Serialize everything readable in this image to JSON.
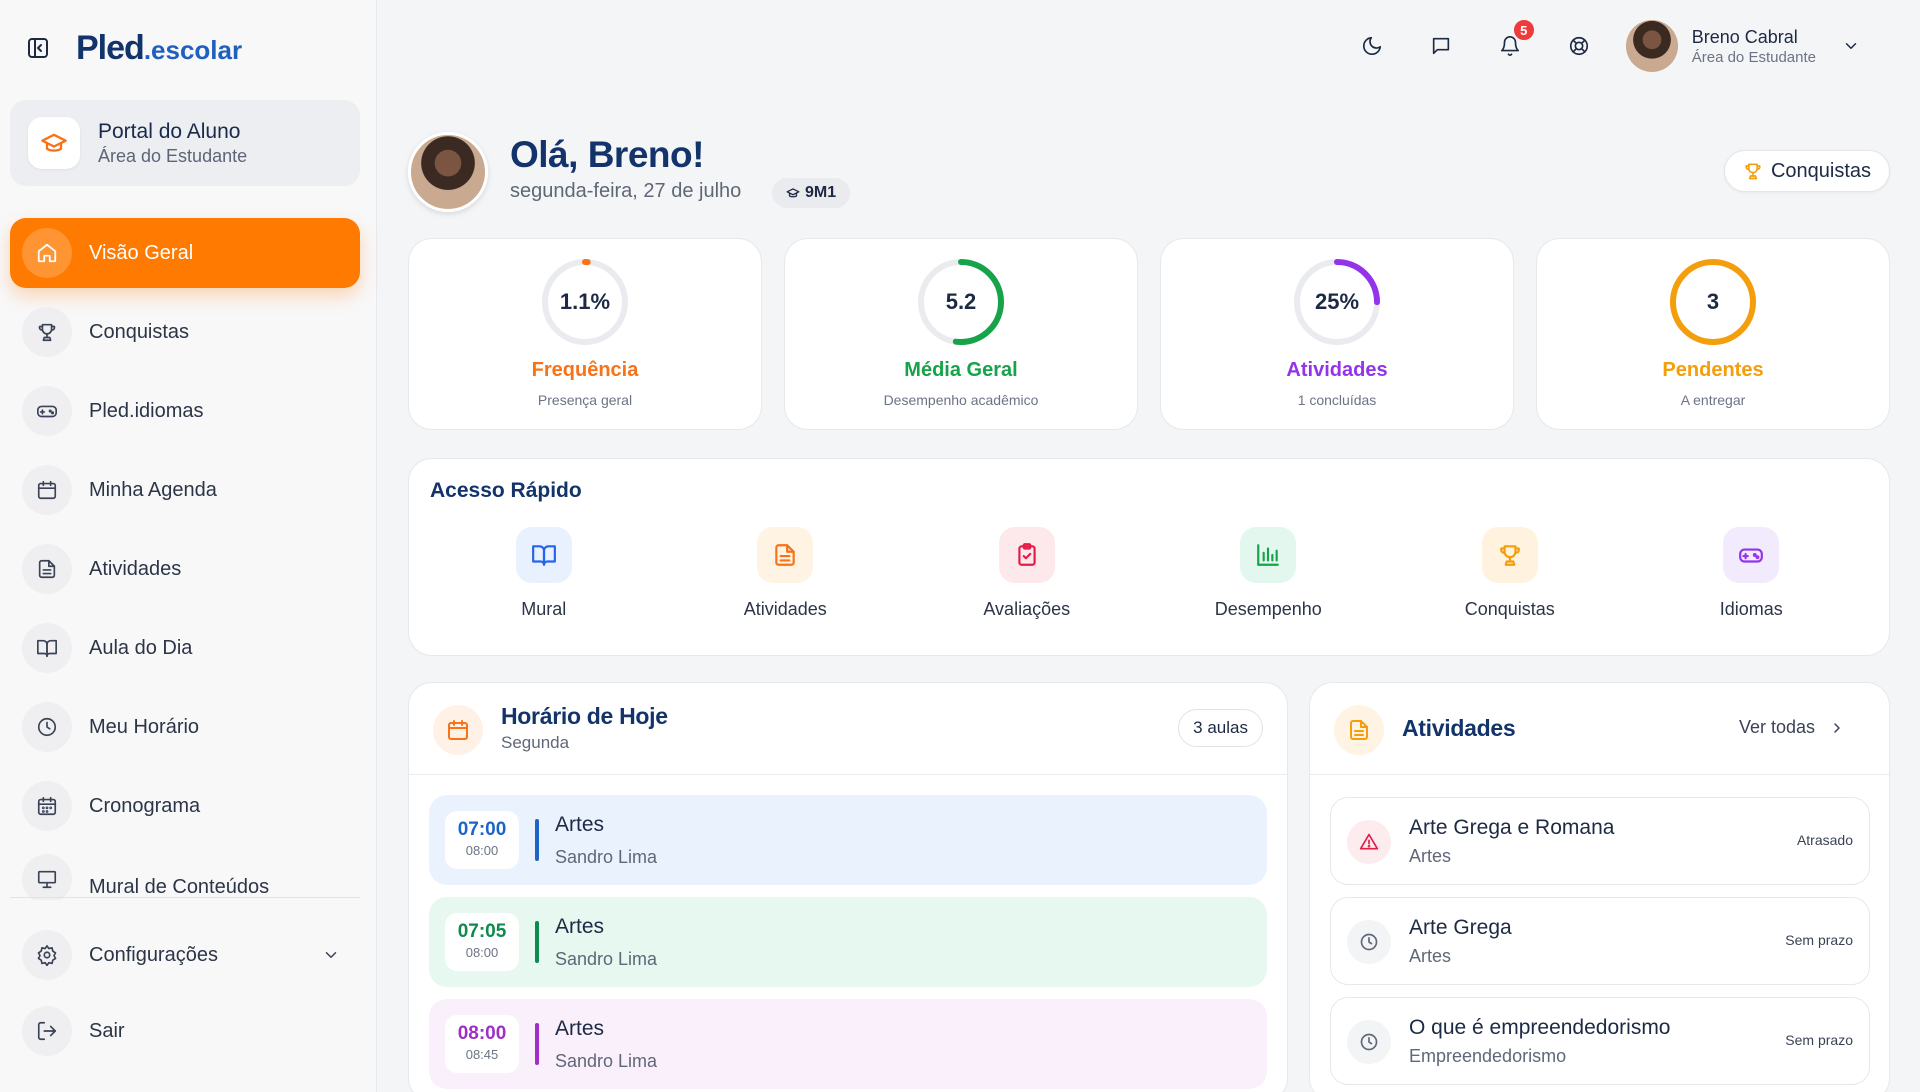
{
  "logo": {
    "main": "Pled",
    "sub": ".escolar"
  },
  "portal": {
    "title": "Portal do Aluno",
    "subtitle": "Área do Estudante"
  },
  "sidebar": {
    "items": [
      {
        "label": "Visão Geral",
        "icon": "home-icon",
        "active": true
      },
      {
        "label": "Conquistas",
        "icon": "trophy-icon"
      },
      {
        "label": "Pled.idiomas",
        "icon": "gamepad-icon"
      },
      {
        "label": "Minha Agenda",
        "icon": "calendar-icon"
      },
      {
        "label": "Atividades",
        "icon": "document-icon"
      },
      {
        "label": "Aula do Dia",
        "icon": "book-icon"
      },
      {
        "label": "Meu Horário",
        "icon": "clock-icon"
      },
      {
        "label": "Cronograma",
        "icon": "calendar-grid-icon"
      },
      {
        "label": "Mural de Conteúdos",
        "icon": "presentation-icon"
      }
    ],
    "settings_label": "Configurações",
    "logout_label": "Sair"
  },
  "header": {
    "notifications_count": "5",
    "user_name": "Breno Cabral",
    "user_role": "Área do Estudante"
  },
  "greeting": {
    "title": "Olá, Breno!",
    "date": "segunda-feira, 27 de julho",
    "class_code": "9M1",
    "achievements_button": "Conquistas"
  },
  "stats": [
    {
      "value": "1.1%",
      "title": "Frequência",
      "subtitle": "Presença geral",
      "color": "#f97316",
      "progress": 0.011
    },
    {
      "value": "5.2",
      "title": "Média Geral",
      "subtitle": "Desempenho acadêmico",
      "color": "#16a34a",
      "progress": 0.52
    },
    {
      "value": "25%",
      "title": "Atividades",
      "subtitle": "1 concluídas",
      "color": "#9333ea",
      "progress": 0.25
    },
    {
      "value": "3",
      "title": "Pendentes",
      "subtitle": "A entregar",
      "color": "#f59e0b",
      "progress": 1.0
    }
  ],
  "quick_access": {
    "title": "Acesso Rápido",
    "items": [
      {
        "label": "Mural",
        "icon": "book-open-icon",
        "bg": "#e8f1fd",
        "color": "#2563eb"
      },
      {
        "label": "Atividades",
        "icon": "document-icon",
        "bg": "#fff3e3",
        "color": "#f97316"
      },
      {
        "label": "Avaliações",
        "icon": "clipboard-check-icon",
        "bg": "#fde8ec",
        "color": "#e11d48"
      },
      {
        "label": "Desempenho",
        "icon": "bar-chart-icon",
        "bg": "#e4f7ee",
        "color": "#16a34a"
      },
      {
        "label": "Conquistas",
        "icon": "trophy-icon",
        "bg": "#fff3e0",
        "color": "#f59e0b"
      },
      {
        "label": "Idiomas",
        "icon": "gamepad-icon",
        "bg": "#f2ebfd",
        "color": "#9333ea"
      }
    ]
  },
  "schedule": {
    "title": "Horário de Hoje",
    "subtitle": "Segunda",
    "count": "3 aulas",
    "slots": [
      {
        "start": "07:00",
        "end": "08:00",
        "subject": "Artes",
        "teacher": "Sandro Lima",
        "bg": "#eaf3fd",
        "color": "#1d64c8"
      },
      {
        "start": "07:05",
        "end": "08:00",
        "subject": "Artes",
        "teacher": "Sandro Lima",
        "bg": "#e6f8ef",
        "color": "#0f8a4f"
      },
      {
        "start": "08:00",
        "end": "08:45",
        "subject": "Artes",
        "teacher": "Sandro Lima",
        "bg": "#faf0fc",
        "color": "#a02fc7"
      }
    ]
  },
  "activities": {
    "title": "Atividades",
    "see_all": "Ver todas",
    "items": [
      {
        "title": "Arte Grega e Romana",
        "subject": "Artes",
        "status": "Atrasado",
        "icon": "alert-icon"
      },
      {
        "title": "Arte Grega",
        "subject": "Artes",
        "status": "Sem prazo",
        "icon": "clock-icon"
      },
      {
        "title": "O que é empreendedorismo",
        "subject": "Empreendedorismo",
        "status": "Sem prazo",
        "icon": "clock-icon"
      }
    ]
  }
}
